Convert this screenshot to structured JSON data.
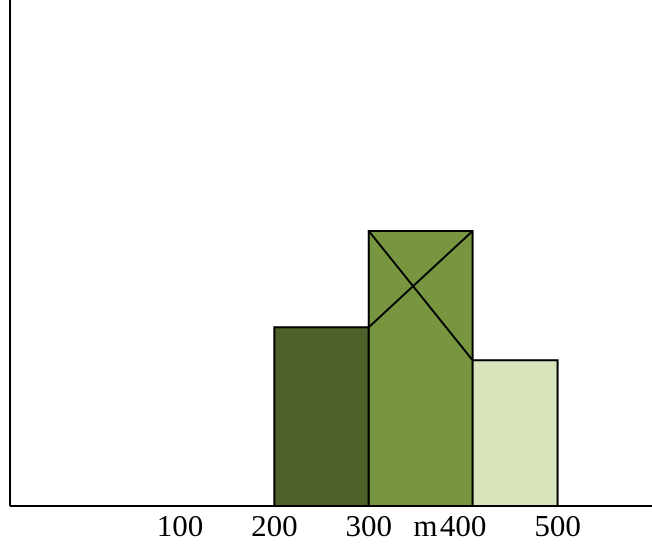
{
  "chart_data": {
    "type": "bar",
    "x_ticks": [
      {
        "value": 100,
        "label": "100"
      },
      {
        "value": 200,
        "label": "200"
      },
      {
        "value": 300,
        "label": "300"
      },
      {
        "value": 360,
        "label": "m"
      },
      {
        "value": 400,
        "label": "400"
      },
      {
        "value": 500,
        "label": "500"
      }
    ],
    "xlim": [
      -80,
      600
    ],
    "ylim": [
      0,
      10
    ],
    "bars": [
      {
        "x_start": 200,
        "x_end": 300,
        "height": 6.5,
        "color": "#4e612a"
      },
      {
        "x_start": 300,
        "x_end": 410,
        "height": 10.0,
        "color": "#77963f"
      },
      {
        "x_start": 410,
        "x_end": 500,
        "height": 5.3,
        "color": "#d8e4bc"
      }
    ],
    "construction_lines": [
      {
        "x1": 300,
        "y1": 6.5,
        "x2": 410,
        "y2": 10.0
      },
      {
        "x1": 300,
        "y1": 10.0,
        "x2": 410,
        "y2": 5.3
      }
    ],
    "grid": false,
    "legend": "none",
    "title": "",
    "xlabel": "",
    "ylabel": ""
  }
}
